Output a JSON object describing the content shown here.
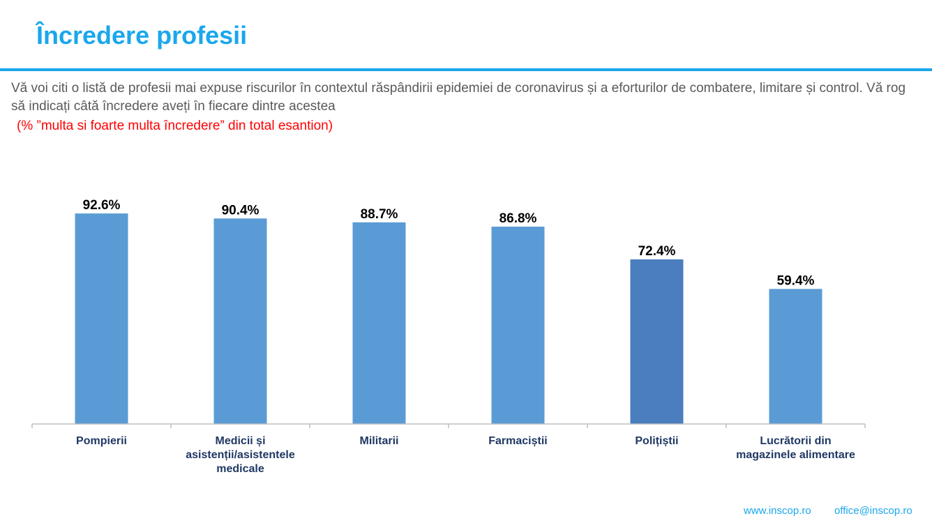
{
  "header": {
    "title": "Încredere profesii",
    "question": "Vă voi citi o listă de profesii mai expuse riscurilor în contextul răspândirii epidemiei de coronavirus și a eforturilor de combatere, limitare și control. Vă rog să indicați câtă încredere aveți în fiecare dintre acestea",
    "note": "(% ”multa si foarte multa încredere” din total esantion)"
  },
  "chart_data": {
    "type": "bar",
    "categories": [
      [
        "Pompierii"
      ],
      [
        "Medicii și",
        "asistenții/asistentele",
        "medicale"
      ],
      [
        "Militarii"
      ],
      [
        "Farmaciștii"
      ],
      [
        "Polițiștii"
      ],
      [
        "Lucrătorii din",
        "magazinele alimentare"
      ]
    ],
    "values": [
      92.6,
      90.4,
      88.7,
      86.8,
      72.4,
      59.4
    ],
    "value_labels": [
      "92.6%",
      "90.4%",
      "88.7%",
      "86.8%",
      "72.4%",
      "59.4%"
    ],
    "ylim": [
      0,
      100
    ],
    "grid": false,
    "bar_colors": [
      "#5b9bd5",
      "#5b9bd5",
      "#5b9bd5",
      "#5b9bd5",
      "#4a7ebf",
      "#5b9bd5"
    ],
    "label_color": "#1f3864"
  },
  "footer": {
    "website": "www.inscop.ro",
    "email": "office@inscop.ro"
  }
}
